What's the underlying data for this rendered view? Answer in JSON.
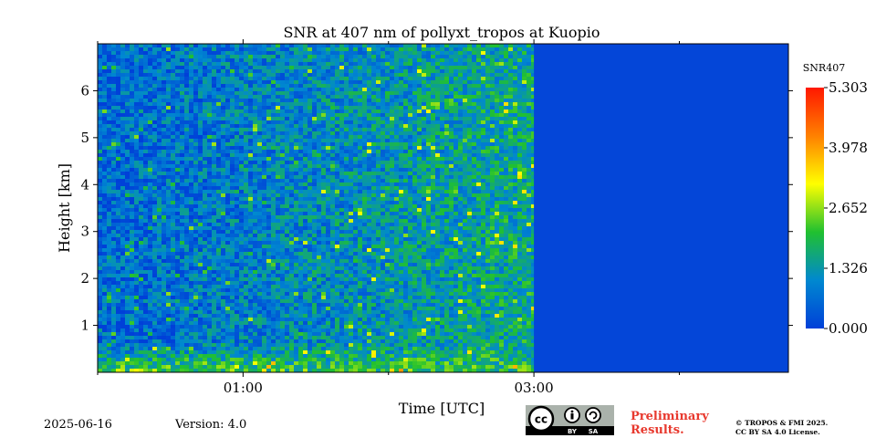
{
  "chart_data": {
    "type": "heatmap",
    "title": "SNR at 407 nm of pollyxt_tropos at Kuopio",
    "xlabel": "Time [UTC]",
    "ylabel": "Height [km]",
    "xlim_hours": [
      0,
      4.75
    ],
    "ylim_km": [
      0,
      7
    ],
    "data_end_hour": 3.0,
    "x_ticks": [
      {
        "value": 1,
        "label": "01:00"
      },
      {
        "value": 3,
        "label": "03:00"
      }
    ],
    "x_minor_ticks": [
      0,
      2,
      4
    ],
    "y_ticks": [
      {
        "value": 1,
        "label": "1"
      },
      {
        "value": 2,
        "label": "2"
      },
      {
        "value": 3,
        "label": "3"
      },
      {
        "value": 4,
        "label": "4"
      },
      {
        "value": 5,
        "label": "5"
      },
      {
        "value": 6,
        "label": "6"
      }
    ],
    "colorbar": {
      "label": "SNR407",
      "min": 0.0,
      "max": 5.303,
      "ticks": [
        {
          "value": 0.0,
          "label": "0.000"
        },
        {
          "value": 1.326,
          "label": "1.326"
        },
        {
          "value": 2.652,
          "label": "2.652"
        },
        {
          "value": 3.978,
          "label": "3.978"
        },
        {
          "value": 5.303,
          "label": "5.303"
        }
      ],
      "colormap": [
        "#0040d8",
        "#0088d0",
        "#20c030",
        "#ffff00",
        "#ff8000",
        "#ff1800"
      ]
    },
    "no_data_value": 0.0
  },
  "footer": {
    "date": "2025-06-16",
    "version": "Version: 4.0",
    "preliminary": [
      "Preliminary",
      "Results."
    ],
    "copyright": [
      "© TROPOS & FMI 2025.",
      "CC BY SA 4.0 License."
    ]
  },
  "license_badge": {
    "cc": "cc",
    "by": "BY",
    "sa": "SA"
  }
}
